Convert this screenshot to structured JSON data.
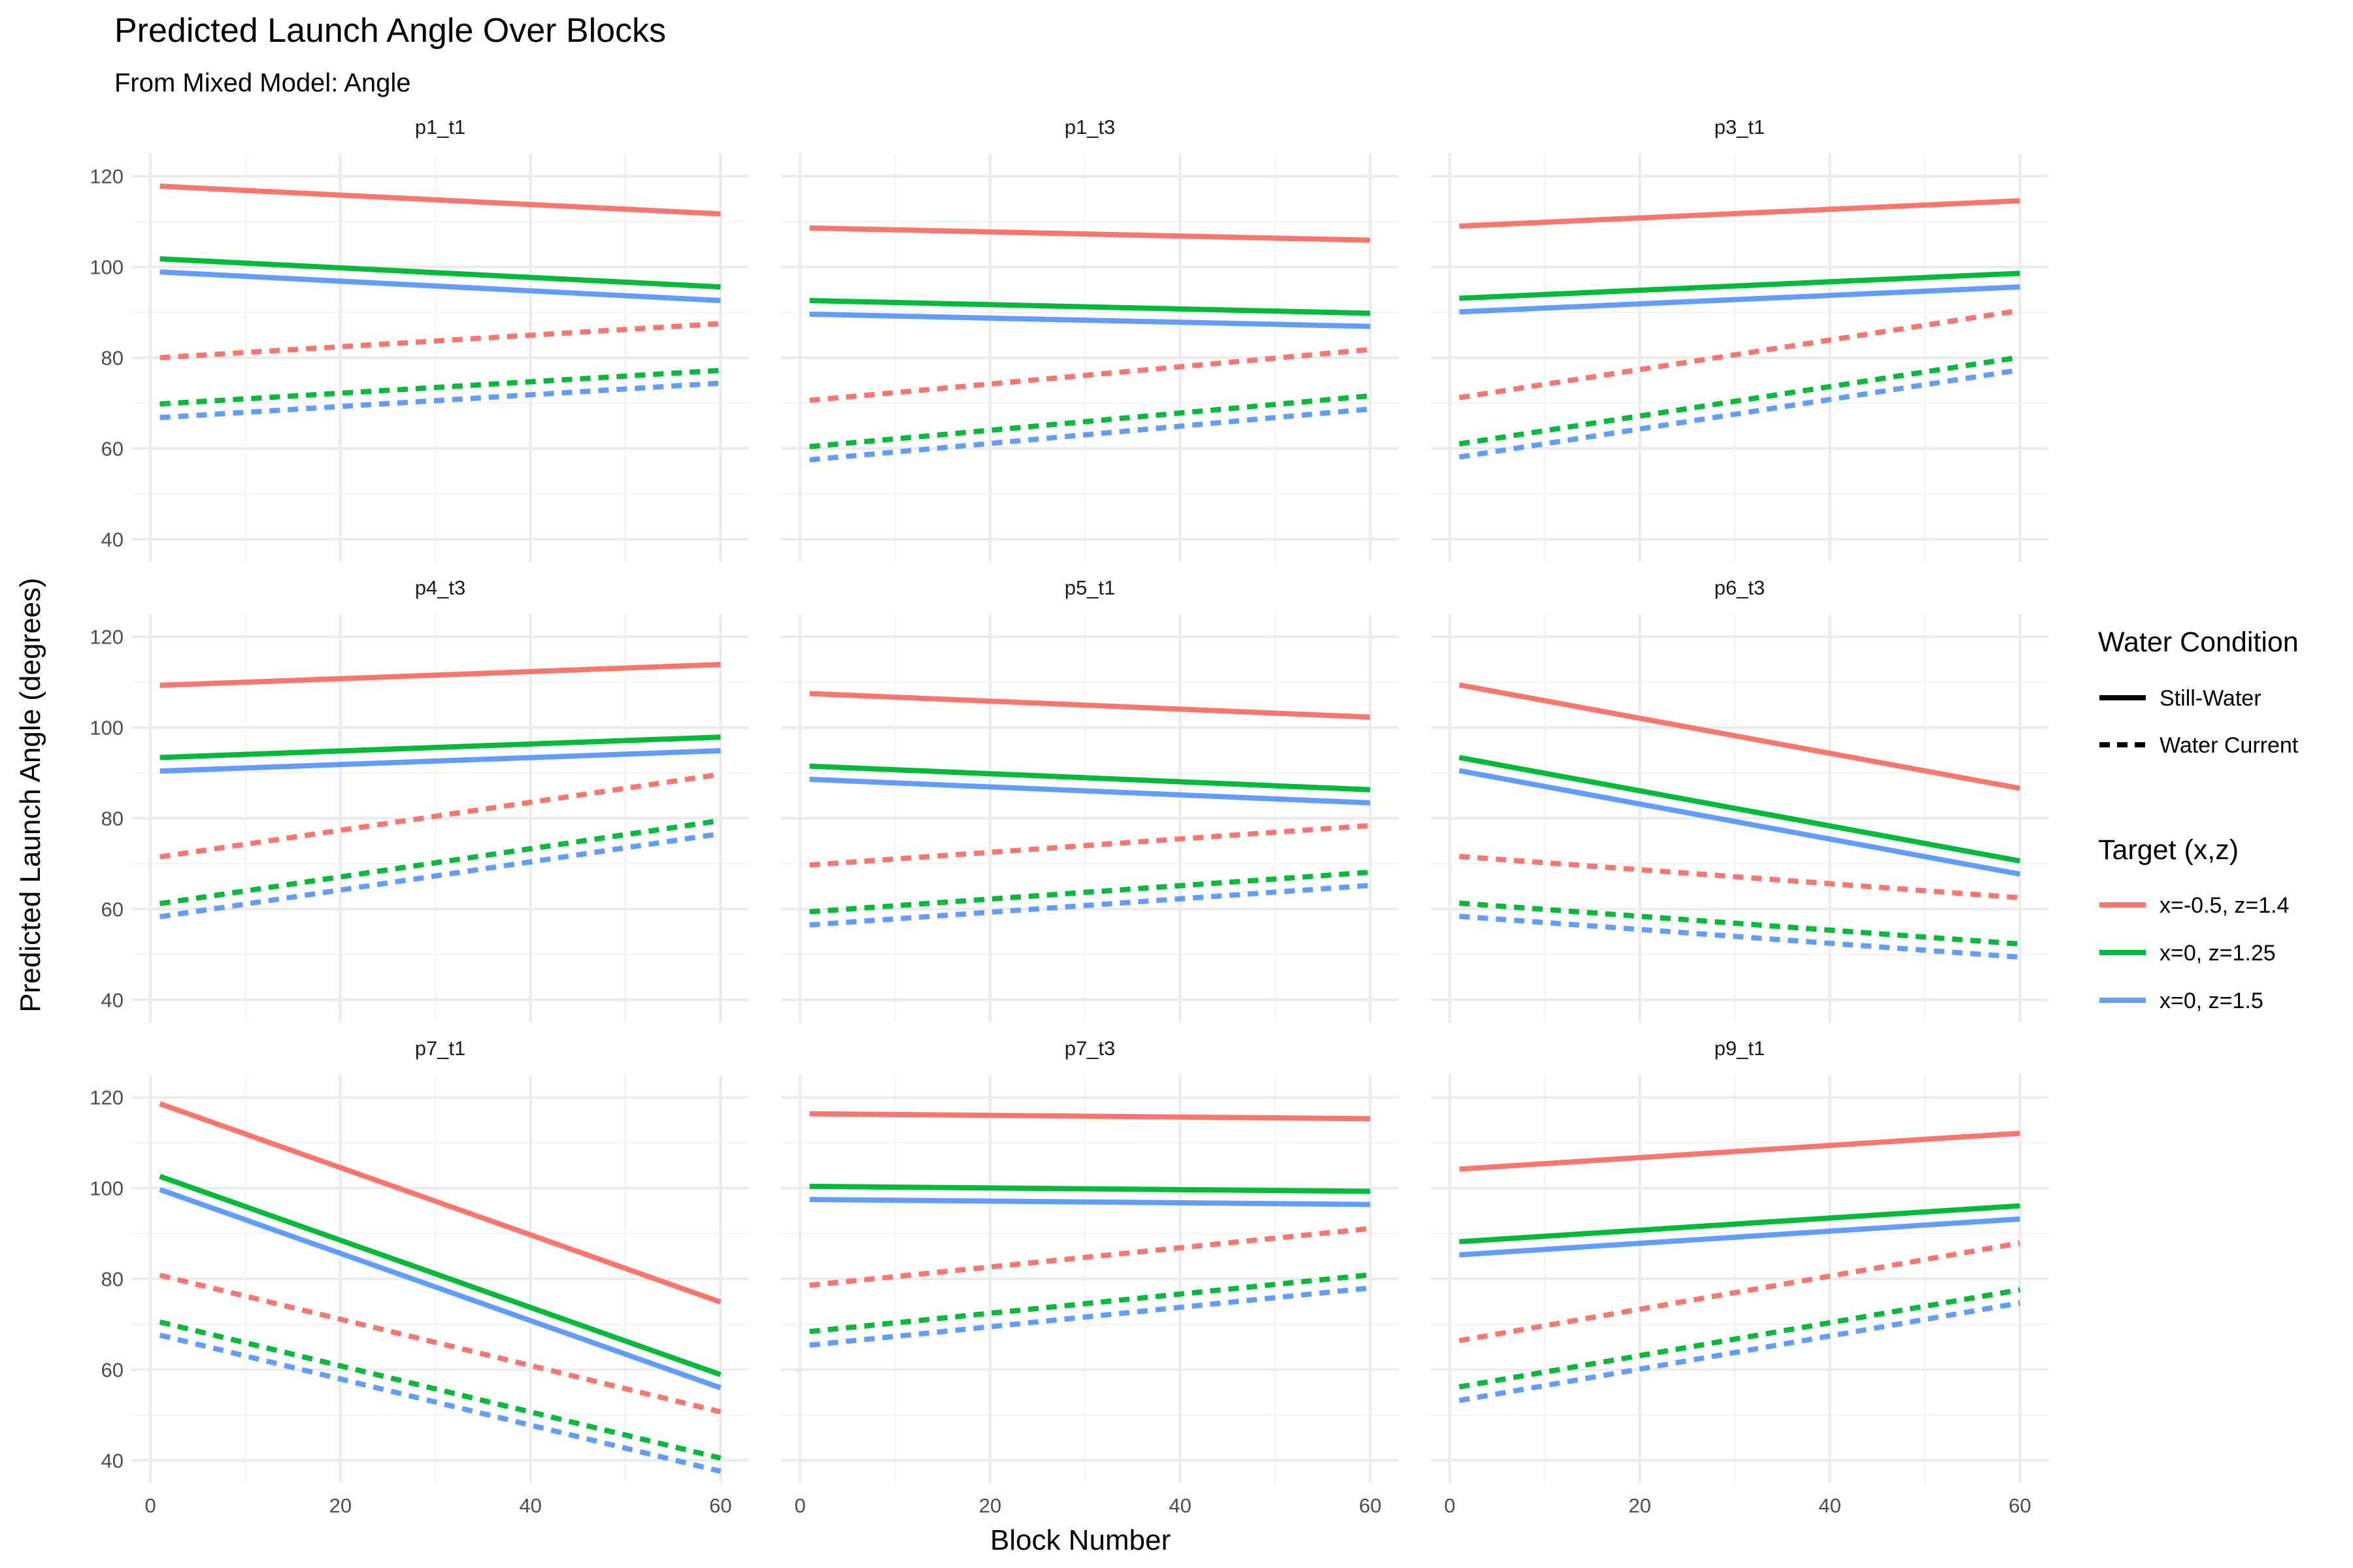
{
  "chart_data": {
    "type": "line",
    "title": "Predicted Launch Angle Over Blocks",
    "subtitle": "From Mixed Model: Angle",
    "xlabel": "Block Number",
    "ylabel": "Predicted Launch Angle (degrees)",
    "xlim": [
      -2,
      63
    ],
    "ylim": [
      35,
      125
    ],
    "x_ticks": [
      0,
      20,
      40,
      60
    ],
    "y_ticks": [
      40,
      60,
      80,
      100,
      120
    ],
    "grid": true,
    "legend_placement": "right",
    "legend": {
      "linetype_title": "Water Condition",
      "linetype_entries": [
        {
          "label": "Still-Water",
          "dash": "solid"
        },
        {
          "label": "Water Current",
          "dash": "dashed"
        }
      ],
      "color_title": "Target (x,z)",
      "color_entries": [
        {
          "label": "x=-0.5, z=1.4",
          "color": "#F8766D"
        },
        {
          "label": "x=0, z=1.25",
          "color": "#00BA38"
        },
        {
          "label": "x=0, z=1.5",
          "color": "#619CFF"
        }
      ]
    },
    "x_range": [
      1,
      60
    ],
    "facets": [
      {
        "label": "p1_t1",
        "lines": [
          {
            "target": 0,
            "condition": 0,
            "y": [
              117.8,
              111.7
            ]
          },
          {
            "target": 1,
            "condition": 0,
            "y": [
              101.8,
              95.6
            ]
          },
          {
            "target": 2,
            "condition": 0,
            "y": [
              98.9,
              92.6
            ]
          },
          {
            "target": 0,
            "condition": 1,
            "y": [
              80.0,
              87.5
            ]
          },
          {
            "target": 1,
            "condition": 1,
            "y": [
              69.8,
              77.2
            ]
          },
          {
            "target": 2,
            "condition": 1,
            "y": [
              66.8,
              74.4
            ]
          }
        ]
      },
      {
        "label": "p1_t3",
        "lines": [
          {
            "target": 0,
            "condition": 0,
            "y": [
              108.6,
              105.9
            ]
          },
          {
            "target": 1,
            "condition": 0,
            "y": [
              92.6,
              89.8
            ]
          },
          {
            "target": 2,
            "condition": 0,
            "y": [
              89.6,
              86.9
            ]
          },
          {
            "target": 0,
            "condition": 1,
            "y": [
              70.6,
              81.8
            ]
          },
          {
            "target": 1,
            "condition": 1,
            "y": [
              60.4,
              71.6
            ]
          },
          {
            "target": 2,
            "condition": 1,
            "y": [
              57.5,
              68.7
            ]
          }
        ]
      },
      {
        "label": "p3_t1",
        "lines": [
          {
            "target": 0,
            "condition": 0,
            "y": [
              109.0,
              114.6
            ]
          },
          {
            "target": 1,
            "condition": 0,
            "y": [
              93.1,
              98.6
            ]
          },
          {
            "target": 2,
            "condition": 0,
            "y": [
              90.1,
              95.6
            ]
          },
          {
            "target": 0,
            "condition": 1,
            "y": [
              71.2,
              90.4
            ]
          },
          {
            "target": 1,
            "condition": 1,
            "y": [
              61.0,
              80.1
            ]
          },
          {
            "target": 2,
            "condition": 1,
            "y": [
              58.1,
              77.3
            ]
          }
        ]
      },
      {
        "label": "p4_t3",
        "lines": [
          {
            "target": 0,
            "condition": 0,
            "y": [
              109.3,
              113.9
            ]
          },
          {
            "target": 1,
            "condition": 0,
            "y": [
              93.4,
              97.9
            ]
          },
          {
            "target": 2,
            "condition": 0,
            "y": [
              90.4,
              94.9
            ]
          },
          {
            "target": 0,
            "condition": 1,
            "y": [
              71.5,
              89.7
            ]
          },
          {
            "target": 1,
            "condition": 1,
            "y": [
              61.2,
              79.5
            ]
          },
          {
            "target": 2,
            "condition": 1,
            "y": [
              58.3,
              76.6
            ]
          }
        ]
      },
      {
        "label": "p5_t1",
        "lines": [
          {
            "target": 0,
            "condition": 0,
            "y": [
              107.5,
              102.3
            ]
          },
          {
            "target": 1,
            "condition": 0,
            "y": [
              91.5,
              86.3
            ]
          },
          {
            "target": 2,
            "condition": 0,
            "y": [
              88.6,
              83.4
            ]
          },
          {
            "target": 0,
            "condition": 1,
            "y": [
              69.7,
              78.4
            ]
          },
          {
            "target": 1,
            "condition": 1,
            "y": [
              59.4,
              68.1
            ]
          },
          {
            "target": 2,
            "condition": 1,
            "y": [
              56.5,
              65.2
            ]
          }
        ]
      },
      {
        "label": "p6_t3",
        "lines": [
          {
            "target": 0,
            "condition": 0,
            "y": [
              109.4,
              86.6
            ]
          },
          {
            "target": 1,
            "condition": 0,
            "y": [
              93.4,
              70.6
            ]
          },
          {
            "target": 2,
            "condition": 0,
            "y": [
              90.5,
              67.7
            ]
          },
          {
            "target": 0,
            "condition": 1,
            "y": [
              71.6,
              62.5
            ]
          },
          {
            "target": 1,
            "condition": 1,
            "y": [
              61.3,
              52.3
            ]
          },
          {
            "target": 2,
            "condition": 1,
            "y": [
              58.4,
              49.4
            ]
          }
        ]
      },
      {
        "label": "p7_t1",
        "lines": [
          {
            "target": 0,
            "condition": 0,
            "y": [
              118.6,
              74.9
            ]
          },
          {
            "target": 1,
            "condition": 0,
            "y": [
              102.6,
              58.9
            ]
          },
          {
            "target": 2,
            "condition": 0,
            "y": [
              99.7,
              56.0
            ]
          },
          {
            "target": 0,
            "condition": 1,
            "y": [
              80.8,
              50.7
            ]
          },
          {
            "target": 1,
            "condition": 1,
            "y": [
              70.5,
              40.5
            ]
          },
          {
            "target": 2,
            "condition": 1,
            "y": [
              67.6,
              37.6
            ]
          }
        ]
      },
      {
        "label": "p7_t3",
        "lines": [
          {
            "target": 0,
            "condition": 0,
            "y": [
              116.4,
              115.3
            ]
          },
          {
            "target": 1,
            "condition": 0,
            "y": [
              100.4,
              99.3
            ]
          },
          {
            "target": 2,
            "condition": 0,
            "y": [
              97.5,
              96.4
            ]
          },
          {
            "target": 0,
            "condition": 1,
            "y": [
              78.6,
              91.1
            ]
          },
          {
            "target": 1,
            "condition": 1,
            "y": [
              68.4,
              80.9
            ]
          },
          {
            "target": 2,
            "condition": 1,
            "y": [
              65.4,
              78.0
            ]
          }
        ]
      },
      {
        "label": "p9_t1",
        "lines": [
          {
            "target": 0,
            "condition": 0,
            "y": [
              104.2,
              112.1
            ]
          },
          {
            "target": 1,
            "condition": 0,
            "y": [
              88.2,
              96.1
            ]
          },
          {
            "target": 2,
            "condition": 0,
            "y": [
              85.3,
              93.2
            ]
          },
          {
            "target": 0,
            "condition": 1,
            "y": [
              66.4,
              87.9
            ]
          },
          {
            "target": 1,
            "condition": 1,
            "y": [
              56.2,
              77.6
            ]
          },
          {
            "target": 2,
            "condition": 1,
            "y": [
              53.2,
              74.7
            ]
          }
        ]
      }
    ]
  }
}
